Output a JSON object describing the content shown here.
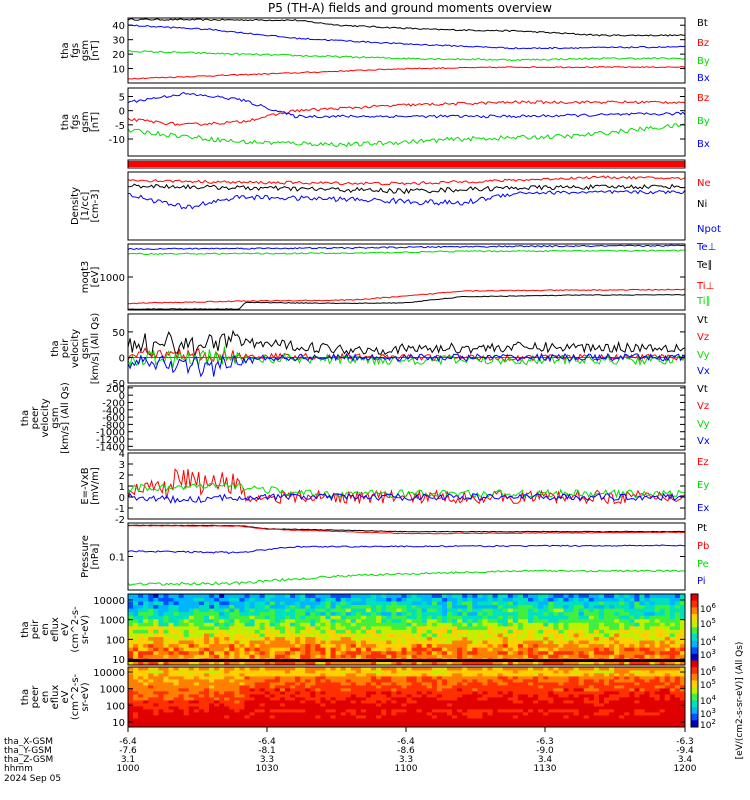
{
  "chart_data": {
    "title": "P5 (TH-A) fields and ground moments overview",
    "type": "line",
    "date": "2024 Sep 05",
    "x_axis": {
      "rows": [
        {
          "label": "tha_X-GSM",
          "values": [
            "-6.4",
            "-6.4",
            "-6.4",
            "-6.3",
            "-6.3"
          ]
        },
        {
          "label": "tha_Y-GSM",
          "values": [
            "-7.6",
            "-8.1",
            "-8.6",
            "-9.0",
            "-9.4"
          ]
        },
        {
          "label": "tha_Z-GSM",
          "values": [
            "3.1",
            "3.3",
            "3.3",
            "3.4",
            "3.4"
          ]
        },
        {
          "label": "hhmm",
          "values": [
            "1000",
            "1030",
            "1100",
            "1130",
            "1200"
          ]
        }
      ]
    },
    "colorbar_label": "[eV/(cm2-s-sr-eV)] (All Qs)",
    "colorbar_ticks": [
      "10^6",
      "10^5",
      "10^4",
      "10^3",
      "10^6",
      "10^5",
      "10^4",
      "10^3",
      "10^2"
    ],
    "panels": [
      {
        "ylabel": [
          "tha",
          "fgs",
          "gsm",
          "[nT]"
        ],
        "ylim": [
          0,
          45
        ],
        "ticks": [
          10,
          20,
          30,
          40
        ],
        "series": [
          {
            "name": "Bt",
            "color": "#000000",
            "trend": [
              [
                0,
                44
              ],
              [
                0.3,
                43.5
              ],
              [
                0.38,
                40
              ],
              [
                0.55,
                37
              ],
              [
                0.7,
                36
              ],
              [
                0.85,
                33
              ],
              [
                1,
                33
              ]
            ],
            "noise": 0.5
          },
          {
            "name": "Bz",
            "color": "#ff0000",
            "trend": [
              [
                0,
                3
              ],
              [
                0.3,
                7
              ],
              [
                0.5,
                10
              ],
              [
                0.7,
                11
              ],
              [
                1,
                11
              ]
            ],
            "noise": 0.4
          },
          {
            "name": "By",
            "color": "#00dd00",
            "trend": [
              [
                0,
                22
              ],
              [
                0.3,
                19
              ],
              [
                0.5,
                17
              ],
              [
                0.7,
                16
              ],
              [
                0.85,
                17
              ],
              [
                1,
                17
              ]
            ],
            "noise": 0.6
          },
          {
            "name": "Bx",
            "color": "#0000ff",
            "trend": [
              [
                0,
                40
              ],
              [
                0.15,
                37
              ],
              [
                0.3,
                31
              ],
              [
                0.5,
                27
              ],
              [
                0.7,
                24
              ],
              [
                1,
                25
              ]
            ],
            "noise": 0.5
          }
        ]
      },
      {
        "ylabel": [
          "tha",
          "fgs",
          "gsm",
          "[nT]"
        ],
        "ylim": [
          -16,
          8
        ],
        "ticks": [
          -10,
          -5,
          0,
          5
        ],
        "series": [
          {
            "name": "Bz",
            "color": "#ff0000",
            "trend": [
              [
                0,
                -3
              ],
              [
                0.1,
                -5
              ],
              [
                0.2,
                -4
              ],
              [
                0.3,
                0
              ],
              [
                0.5,
                2
              ],
              [
                0.7,
                3
              ],
              [
                1,
                3
              ]
            ],
            "noise": 0.5
          },
          {
            "name": "By",
            "color": "#00dd00",
            "trend": [
              [
                0,
                -7
              ],
              [
                0.2,
                -11
              ],
              [
                0.4,
                -12
              ],
              [
                0.6,
                -10
              ],
              [
                0.8,
                -9
              ],
              [
                1,
                -5
              ]
            ],
            "noise": 0.8
          },
          {
            "name": "Bx",
            "color": "#0000ff",
            "trend": [
              [
                0,
                3
              ],
              [
                0.1,
                6
              ],
              [
                0.2,
                4
              ],
              [
                0.3,
                -2
              ],
              [
                0.5,
                -2
              ],
              [
                0.7,
                -2
              ],
              [
                1,
                -1
              ]
            ],
            "noise": 0.5
          }
        ]
      },
      {
        "ylabel": [],
        "ylim": [
          0,
          1
        ],
        "ticks": [],
        "series": []
      },
      {
        "ylabel": [
          "Density",
          "[1/cc]",
          "[cm-3]"
        ],
        "ylim": [
          0.03,
          0.6
        ],
        "ticks": [],
        "series": [
          {
            "name": "Ne",
            "color": "#ff0000",
            "trend": [
              [
                0,
                0.42
              ],
              [
                0.2,
                0.38
              ],
              [
                0.5,
                0.36
              ],
              [
                0.7,
                0.42
              ],
              [
                0.85,
                0.48
              ],
              [
                1,
                0.45
              ]
            ],
            "noise": 0.025
          },
          {
            "name": "Ni",
            "color": "#000000",
            "trend": [
              [
                0,
                0.33
              ],
              [
                0.2,
                0.3
              ],
              [
                0.5,
                0.26
              ],
              [
                0.7,
                0.3
              ],
              [
                1,
                0.32
              ]
            ],
            "noise": 0.03
          },
          {
            "name": "Npot",
            "color": "#0000ff",
            "trend": [
              [
                0,
                0.22
              ],
              [
                0.1,
                0.12
              ],
              [
                0.2,
                0.2
              ],
              [
                0.4,
                0.18
              ],
              [
                0.6,
                0.15
              ],
              [
                0.7,
                0.24
              ],
              [
                1,
                0.25
              ]
            ],
            "noise": 0.02
          }
        ]
      },
      {
        "ylabel": [
          "moqt3",
          "[eV]"
        ],
        "ylim": [
          0,
          2000
        ],
        "ticks": [
          1000
        ],
        "series": [
          {
            "name": "Te⊥",
            "color": "#0000ff",
            "trend": [
              [
                0,
                1850
              ],
              [
                0.4,
                1880
              ],
              [
                0.6,
                1920
              ],
              [
                1,
                1950
              ]
            ],
            "noise": 20
          },
          {
            "name": "Te∥",
            "color": "#000000",
            "trend": [
              [
                0,
                30
              ],
              [
                0.2,
                30
              ],
              [
                0.21,
                230
              ],
              [
                0.4,
                200
              ],
              [
                0.5,
                220
              ],
              [
                0.6,
                400
              ],
              [
                0.8,
                450
              ],
              [
                1,
                460
              ]
            ],
            "noise": 10
          },
          {
            "name": "Ti⊥",
            "color": "#ff0000",
            "trend": [
              [
                0,
                200
              ],
              [
                0.2,
                270
              ],
              [
                0.4,
                300
              ],
              [
                0.5,
                420
              ],
              [
                0.6,
                580
              ],
              [
                0.8,
                600
              ],
              [
                1,
                620
              ]
            ],
            "noise": 15
          },
          {
            "name": "Ti∥",
            "color": "#00dd00",
            "trend": [
              [
                0,
                1700
              ],
              [
                0.4,
                1720
              ],
              [
                0.6,
                1780
              ],
              [
                1,
                1800
              ]
            ],
            "noise": 20
          }
        ]
      },
      {
        "ylabel": [
          "tha",
          "peir",
          "velocity",
          "gsm",
          "[km/s] (All Qs)"
        ],
        "ylim": [
          -50,
          85
        ],
        "ticks": [
          -50,
          0,
          50
        ],
        "series": [
          {
            "name": "Vt",
            "color": "#000000",
            "trend": [
              [
                0,
                20
              ],
              [
                0.2,
                30
              ],
              [
                0.4,
                15
              ],
              [
                0.7,
                20
              ],
              [
                1,
                20
              ]
            ],
            "noise": 10
          },
          {
            "name": "Vz",
            "color": "#ff0000",
            "trend": [
              [
                0,
                5
              ],
              [
                0.5,
                0
              ],
              [
                1,
                0
              ]
            ],
            "noise": 6
          },
          {
            "name": "Vy",
            "color": "#00dd00",
            "trend": [
              [
                0,
                0
              ],
              [
                0.5,
                -5
              ],
              [
                1,
                -5
              ]
            ],
            "noise": 9
          },
          {
            "name": "Vx",
            "color": "#0000ff",
            "trend": [
              [
                0,
                -5
              ],
              [
                0.15,
                -20
              ],
              [
                0.25,
                0
              ],
              [
                1,
                0
              ]
            ],
            "noise": 7
          }
        ]
      },
      {
        "ylabel": [
          "tha",
          "peer",
          "velocity",
          "gsm",
          "[km/s] (All Qs)"
        ],
        "ylim": [
          -1500,
          250
        ],
        "ticks": [
          -1400,
          -1200,
          -1000,
          -800,
          -600,
          -400,
          -200,
          0,
          200
        ],
        "series": []
      },
      {
        "ylabel": [
          "E=-VxB",
          "[mV/m]"
        ],
        "ylim": [
          -2,
          4
        ],
        "ticks": [
          -2,
          -1,
          0,
          1,
          2,
          3,
          4
        ],
        "series": [
          {
            "name": "Ez",
            "color": "#ff0000",
            "trend": [
              [
                0,
                0.5
              ],
              [
                0.1,
                1.5
              ],
              [
                0.2,
                1.2
              ],
              [
                0.21,
                0
              ],
              [
                1,
                0
              ]
            ],
            "noise": 0.6
          },
          {
            "name": "Ey",
            "color": "#00dd00",
            "trend": [
              [
                0,
                0.8
              ],
              [
                0.2,
                1
              ],
              [
                0.3,
                0.3
              ],
              [
                1,
                0.3
              ]
            ],
            "noise": 0.35
          },
          {
            "name": "Ex",
            "color": "#0000ff",
            "trend": [
              [
                0,
                0
              ],
              [
                0.1,
                -0.3
              ],
              [
                0.2,
                0
              ],
              [
                1,
                0
              ]
            ],
            "noise": 0.3
          }
        ]
      },
      {
        "ylabel": [
          "Pressure",
          "[nPa]"
        ],
        "ylim": [
          0.02,
          0.5
        ],
        "ticks": [
          0.1
        ],
        "series": [
          {
            "name": "Pt",
            "color": "#000000",
            "trend": [
              [
                0,
                0.45
              ],
              [
                0.2,
                0.44
              ],
              [
                0.25,
                0.38
              ],
              [
                0.5,
                0.33
              ],
              [
                1,
                0.33
              ]
            ],
            "noise": 0.005
          },
          {
            "name": "Pb",
            "color": "#ff0000",
            "trend": [
              [
                0,
                0.44
              ],
              [
                0.2,
                0.43
              ],
              [
                0.25,
                0.37
              ],
              [
                0.5,
                0.3
              ],
              [
                1,
                0.32
              ]
            ],
            "noise": 0.005
          },
          {
            "name": "Pe",
            "color": "#00dd00",
            "trend": [
              [
                0,
                0.026
              ],
              [
                0.2,
                0.028
              ],
              [
                0.4,
                0.04
              ],
              [
                0.7,
                0.05
              ],
              [
                1,
                0.05
              ]
            ],
            "noise": 0.002
          },
          {
            "name": "Pi",
            "color": "#0000ff",
            "trend": [
              [
                0,
                0.13
              ],
              [
                0.2,
                0.12
              ],
              [
                0.3,
                0.16
              ],
              [
                1,
                0.17
              ]
            ],
            "noise": 0.005
          }
        ]
      },
      {
        "ylabel": [
          "tha",
          "peir",
          "en",
          "eflux",
          "eV",
          "(cm^2-s-",
          "sr-eV)"
        ],
        "ylim": [
          5,
          20000
        ],
        "ticks": [
          10,
          100,
          1000,
          10000
        ],
        "series": []
      },
      {
        "ylabel": [
          "tha",
          "peer",
          "en",
          "eflux",
          "eV",
          "(cm^2-s-",
          "sr-eV)"
        ],
        "ylim": [
          5,
          20000
        ],
        "ticks": [
          10,
          100,
          1000,
          10000
        ],
        "series": []
      }
    ]
  }
}
